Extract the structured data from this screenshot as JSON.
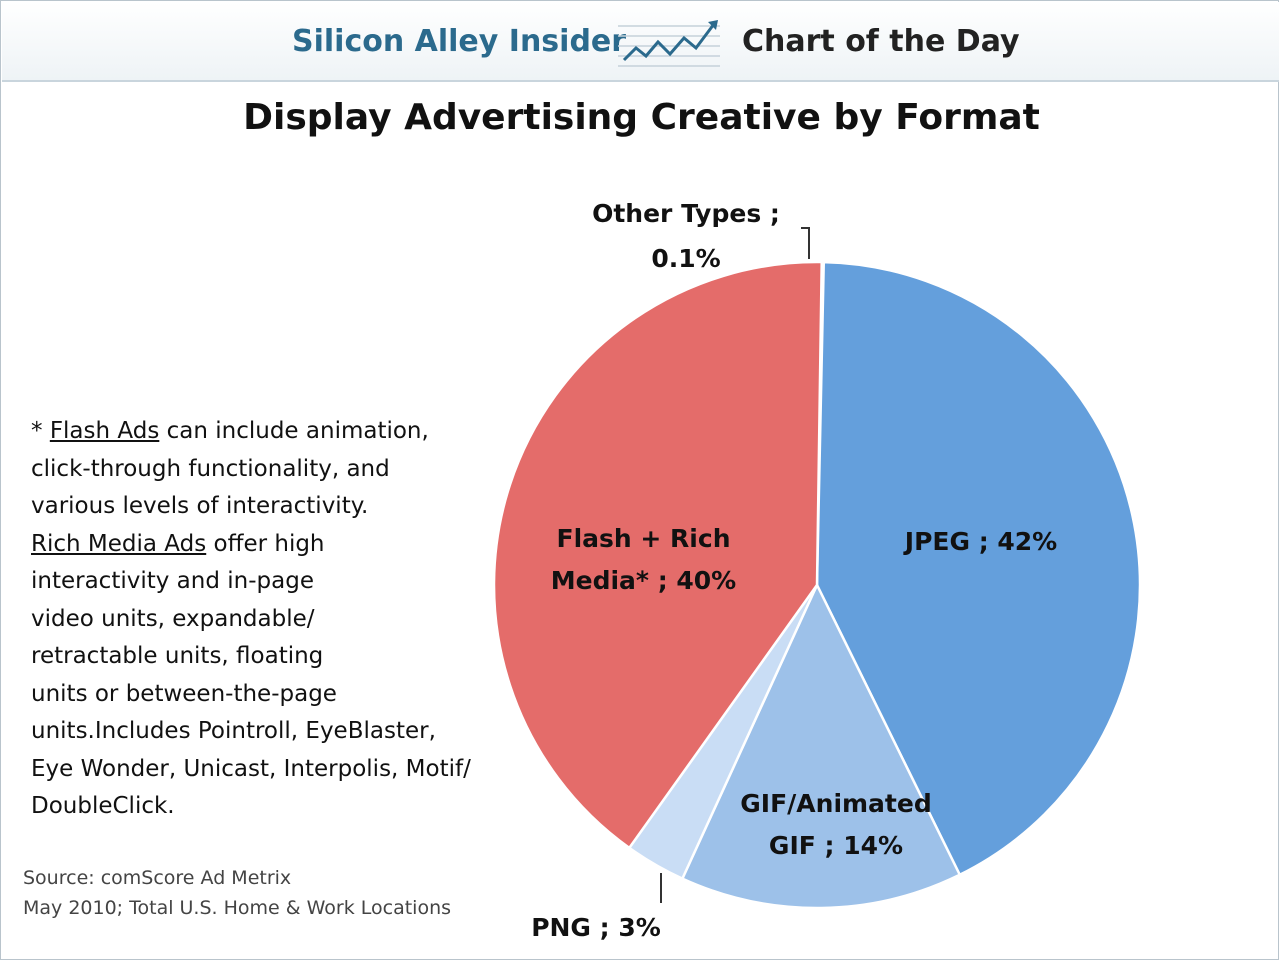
{
  "header": {
    "brand": "Silicon Alley Insider",
    "section": "Chart of the Day",
    "icon": "trend-chart-icon"
  },
  "chart_data": {
    "type": "pie",
    "title": "Display Advertising Creative by Format",
    "slices": [
      {
        "name": "Other Types",
        "value": 0.1,
        "label_line1": "Other Types ;",
        "label_line2": "0.1%",
        "color": "#3cc4e8"
      },
      {
        "name": "JPEG",
        "value": 42,
        "label_line1": "JPEG ; 42%",
        "color": "#649fdc"
      },
      {
        "name": "GIF/Animated GIF",
        "value": 14,
        "label_line1": "GIF/Animated",
        "label_line2": "GIF ; 14%",
        "color": "#9dc1e9"
      },
      {
        "name": "PNG",
        "value": 3,
        "label_line1": "PNG ; 3%",
        "color": "#c9ddf5"
      },
      {
        "name": "Flash + Rich Media*",
        "value": 40,
        "label_line1": "Flash + Rich",
        "label_line2": "Media* ; 40%",
        "color": "#e46c6a"
      }
    ]
  },
  "note": {
    "line1_prefix": "* ",
    "line1_term": "Flash Ads",
    "line1_rest": " can include animation,",
    "line2": "click-through functionality, and",
    "line3": "various levels of interactivity.",
    "line4_term": "Rich Media Ads",
    "line4_rest": " offer high",
    "line5": "interactivity and in-page",
    "line6": "video units, expandable/",
    "line7": "retractable units, floating",
    "line8": "units or between-the-page",
    "line9": "units.Includes Pointroll, EyeBlaster,",
    "line10": "Eye Wonder, Unicast, Interpolis, Motif/",
    "line11": "DoubleClick."
  },
  "source": {
    "line1": "Source: comScore Ad Metrix",
    "line2": "May 2010; Total U.S. Home & Work Locations"
  }
}
